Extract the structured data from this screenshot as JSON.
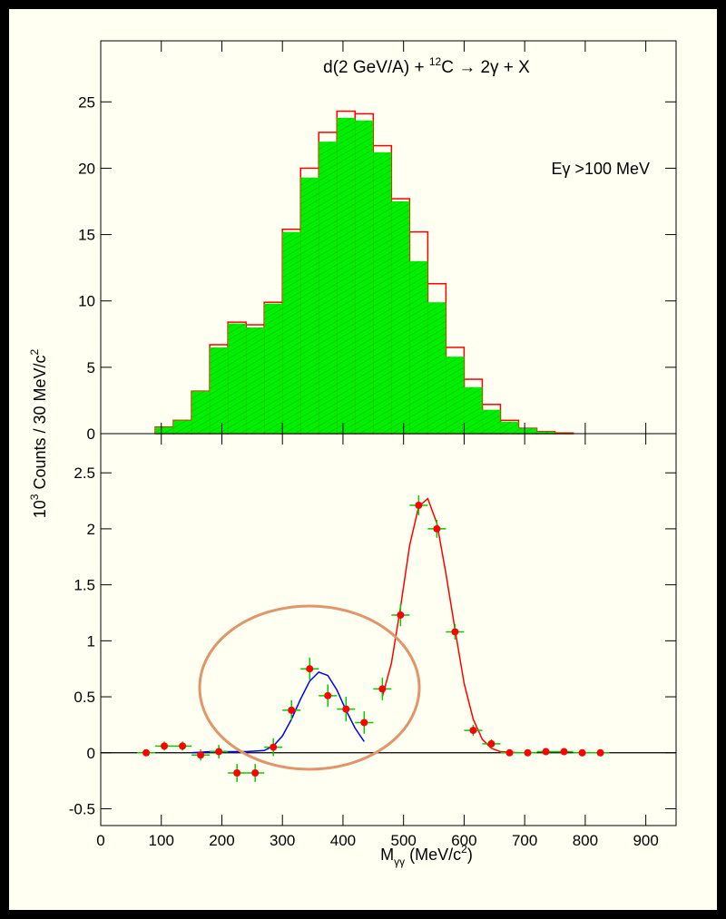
{
  "chart_data": [
    {
      "type": "histogram",
      "title": {
        "text": "d(2 GeV/A) + ",
        "sup": "12",
        "tail": "C → 2γ + X"
      },
      "annotation": "Eγ >100 MeV",
      "ylabel": {
        "pre": "10",
        "sup": "3",
        "text": " Counts / 30 MeV/c",
        "sup2": "2"
      },
      "bins": [
        90,
        120,
        150,
        180,
        210,
        240,
        270,
        300,
        330,
        360,
        390,
        420,
        450,
        480,
        510,
        540,
        570,
        600,
        630,
        660,
        690,
        720,
        750,
        780
      ],
      "series": [
        {
          "color": "#ff0000",
          "style": "step",
          "values": [
            0.5,
            1.0,
            3.2,
            6.7,
            8.4,
            8.2,
            9.9,
            15.4,
            20.0,
            22.7,
            24.3,
            24.1,
            21.7,
            17.7,
            15.2,
            11.3,
            6.5,
            4.1,
            2.2,
            1.0,
            0.4,
            0.15,
            0.05
          ]
        },
        {
          "color": "#00ee00",
          "style": "fill",
          "values": [
            0.5,
            1.0,
            3.2,
            6.5,
            8.3,
            8.0,
            9.8,
            15.2,
            19.3,
            22.0,
            23.8,
            23.6,
            21.2,
            17.5,
            13.0,
            9.9,
            5.8,
            3.5,
            1.8,
            0.9,
            0.4,
            0.15,
            0.05
          ]
        }
      ],
      "xlim": [
        0,
        950
      ],
      "xticks": [
        0,
        100,
        200,
        300,
        400,
        500,
        600,
        700,
        800,
        900
      ],
      "ylim": [
        0,
        29.6
      ],
      "yticks": [
        0,
        5,
        10,
        15,
        20,
        25
      ]
    },
    {
      "type": "errorbar",
      "xlabel": {
        "text": "M",
        "sub": "γγ",
        "tail": " (MeV/c",
        "sup": "2",
        "end": ")"
      },
      "points": {
        "color": "#ff0000",
        "error_color": "#00cc00",
        "xerr": 15,
        "x": [
          75,
          105,
          135,
          165,
          195,
          225,
          255,
          285,
          315,
          345,
          375,
          405,
          435,
          465,
          495,
          525,
          555,
          585,
          615,
          645,
          675,
          705,
          735,
          765,
          795,
          825
        ],
        "values": [
          0,
          0.06,
          0.06,
          -0.02,
          0.01,
          -0.18,
          -0.18,
          0.05,
          0.38,
          0.75,
          0.51,
          0.39,
          0.27,
          0.57,
          1.23,
          2.21,
          2.0,
          1.08,
          0.2,
          0.08,
          0,
          0,
          0.01,
          0.01,
          0,
          0
        ],
        "yerr": [
          0.03,
          0.04,
          0.04,
          0.05,
          0.06,
          0.08,
          0.08,
          0.08,
          0.09,
          0.1,
          0.1,
          0.11,
          0.1,
          0.1,
          0.1,
          0.09,
          0.08,
          0.07,
          0.05,
          0.04,
          0.03,
          0.02,
          0.02,
          0.02,
          0.02,
          0.02
        ]
      },
      "curves": [
        {
          "color": "#0000ff",
          "x": [
            150,
            180,
            210,
            240,
            270,
            285,
            300,
            315,
            330,
            345,
            360,
            375,
            390,
            405,
            420,
            435
          ],
          "values": [
            0,
            0.01,
            0.01,
            0.01,
            0.02,
            0.06,
            0.15,
            0.3,
            0.48,
            0.64,
            0.72,
            0.69,
            0.56,
            0.38,
            0.22,
            0.1
          ]
        },
        {
          "color": "#ff0000",
          "x": [
            465,
            480,
            495,
            510,
            525,
            540,
            555,
            570,
            585,
            600,
            615,
            630,
            645,
            660,
            690,
            720
          ],
          "values": [
            0.5,
            0.8,
            1.3,
            1.85,
            2.2,
            2.27,
            2.05,
            1.6,
            1.1,
            0.62,
            0.3,
            0.12,
            0.04,
            0.01,
            0,
            0
          ]
        }
      ],
      "xlim": [
        0,
        950
      ],
      "xticks": [
        0,
        100,
        200,
        300,
        400,
        500,
        600,
        700,
        800,
        900
      ],
      "ylim": [
        -0.65,
        2.85
      ],
      "yticks": [
        -0.5,
        0,
        0.5,
        1,
        1.5,
        2,
        2.5
      ]
    }
  ]
}
